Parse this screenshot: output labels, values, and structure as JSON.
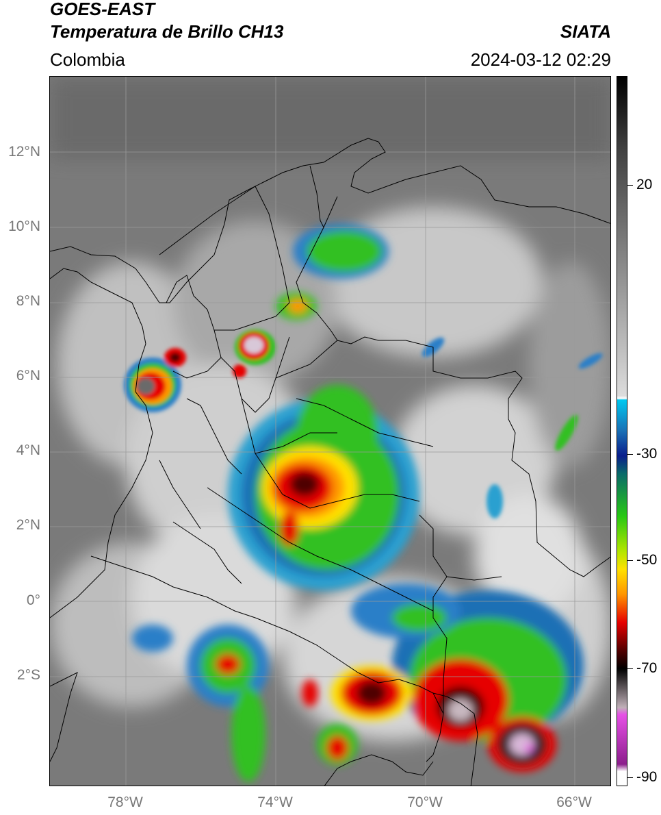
{
  "header": {
    "title_line1": "GOES-EAST",
    "title_line2": "Temperatura de Brillo CH13",
    "region": "Colombia",
    "organization": "SIATA",
    "datetime": "2024-03-12 02:29"
  },
  "map": {
    "lat_labels": [
      "12°N",
      "10°N",
      "8°N",
      "6°N",
      "4°N",
      "2°N",
      "0°",
      "2°S"
    ],
    "lon_labels": [
      "78°W",
      "74°W",
      "70°W",
      "66°W"
    ]
  },
  "colorbar": {
    "tick_labels": [
      "20",
      "-30",
      "-50",
      "-70",
      "-90"
    ],
    "ticks": [
      20,
      -30,
      -50,
      -70,
      -90
    ],
    "range": [
      35,
      -92
    ],
    "colors": {
      "warm_gray": "#dcdcdc",
      "cyan": "#00c8f0",
      "blue": "#0a1e8c",
      "green": "#28c814",
      "yellow": "#ffe100",
      "orange": "#ff9600",
      "red": "#e60000",
      "dark_red": "#500000",
      "black": "#000000",
      "magenta": "#e650e6",
      "purple": "#8c1e8c",
      "white": "#ffffff"
    }
  }
}
